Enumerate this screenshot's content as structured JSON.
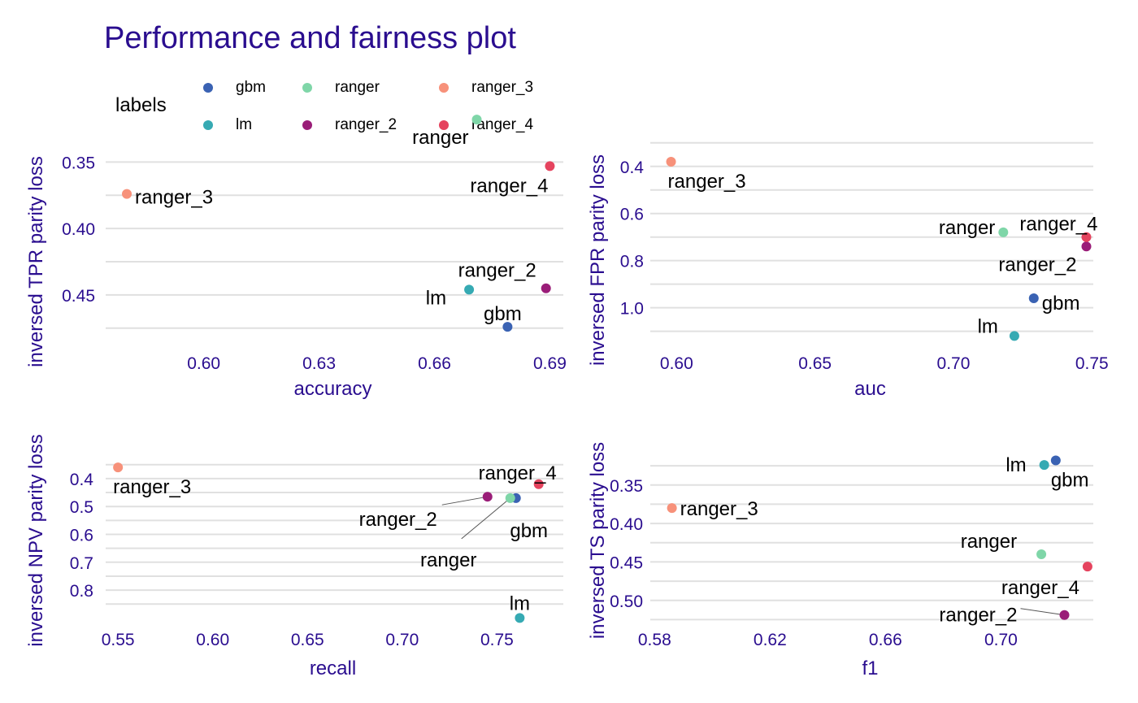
{
  "title": "Performance and fairness plot",
  "legend": {
    "title": "labels",
    "items": [
      {
        "label": "gbm",
        "color": "#3a62b3"
      },
      {
        "label": "lm",
        "color": "#36aab3"
      },
      {
        "label": "ranger",
        "color": "#7fd6a8"
      },
      {
        "label": "ranger_2",
        "color": "#9a1d78"
      },
      {
        "label": "ranger_3",
        "color": "#f7917a"
      },
      {
        "label": "ranger_4",
        "color": "#e5435e"
      }
    ]
  },
  "colors": {
    "title": "#2a0d8f",
    "axis_text": "#2a0d8f",
    "grid": "#e0e0e0"
  },
  "chart_data": [
    {
      "type": "scatter",
      "xlabel": "accuracy",
      "ylabel": "inversed TPR parity loss",
      "xlim": [
        0.5745,
        0.6935
      ],
      "ylim": [
        0.332,
        0.488
      ],
      "y_reversed": true,
      "xticks": [
        0.6,
        0.63,
        0.66,
        0.69
      ],
      "xtick_labels": [
        "0.60",
        "0.63",
        "0.66",
        "0.69"
      ],
      "yticks": [
        0.35,
        0.4,
        0.45
      ],
      "ytick_labels": [
        "0.35",
        "0.40",
        "0.45"
      ],
      "grid": true,
      "points": [
        {
          "label": "gbm",
          "x": 0.679,
          "y": 0.474
        },
        {
          "label": "lm",
          "x": 0.669,
          "y": 0.446
        },
        {
          "label": "ranger",
          "x": 0.671,
          "y": 0.318
        },
        {
          "label": "ranger_2",
          "x": 0.689,
          "y": 0.445
        },
        {
          "label": "ranger_3",
          "x": 0.58,
          "y": 0.374
        },
        {
          "label": "ranger_4",
          "x": 0.69,
          "y": 0.353
        }
      ]
    },
    {
      "type": "scatter",
      "xlabel": "auc",
      "ylabel": "inversed FPR parity loss",
      "xlim": [
        0.5905,
        0.7505
      ],
      "ylim": [
        0.28,
        1.16
      ],
      "y_reversed": true,
      "xticks": [
        0.6,
        0.65,
        0.7,
        0.75
      ],
      "xtick_labels": [
        "0.60",
        "0.65",
        "0.70",
        "0.75"
      ],
      "yticks": [
        0.4,
        0.6,
        0.8,
        1.0
      ],
      "ytick_labels": [
        "0.4",
        "0.6",
        "0.8",
        "1.0"
      ],
      "grid": true,
      "points": [
        {
          "label": "gbm",
          "x": 0.729,
          "y": 0.96
        },
        {
          "label": "lm",
          "x": 0.722,
          "y": 1.12
        },
        {
          "label": "ranger",
          "x": 0.718,
          "y": 0.68
        },
        {
          "label": "ranger_2",
          "x": 0.748,
          "y": 0.74
        },
        {
          "label": "ranger_3",
          "x": 0.598,
          "y": 0.38
        },
        {
          "label": "ranger_4",
          "x": 0.748,
          "y": 0.7
        }
      ]
    },
    {
      "type": "scatter",
      "xlabel": "recall",
      "ylabel": "inversed NPV parity loss",
      "xlim": [
        0.5435,
        0.785
      ],
      "ylim": [
        0.307,
        0.928
      ],
      "y_reversed": true,
      "xticks": [
        0.55,
        0.6,
        0.65,
        0.7,
        0.75
      ],
      "xtick_labels": [
        "0.55",
        "0.60",
        "0.65",
        "0.70",
        "0.75"
      ],
      "yticks": [
        0.4,
        0.5,
        0.6,
        0.7,
        0.8
      ],
      "ytick_labels": [
        "0.4",
        "0.5",
        "0.6",
        "0.7",
        "0.8"
      ],
      "grid": true,
      "points": [
        {
          "label": "gbm",
          "x": 0.76,
          "y": 0.47
        },
        {
          "label": "lm",
          "x": 0.762,
          "y": 0.9
        },
        {
          "label": "ranger",
          "x": 0.757,
          "y": 0.47
        },
        {
          "label": "ranger_2",
          "x": 0.745,
          "y": 0.465
        },
        {
          "label": "ranger_3",
          "x": 0.55,
          "y": 0.36
        },
        {
          "label": "ranger_4",
          "x": 0.772,
          "y": 0.42
        }
      ]
    },
    {
      "type": "scatter",
      "xlabel": "f1",
      "ylabel": "inversed TS parity loss",
      "xlim": [
        0.5785,
        0.732
      ],
      "ylim": [
        0.308,
        0.533
      ],
      "y_reversed": true,
      "xticks": [
        0.58,
        0.62,
        0.66,
        0.7
      ],
      "xtick_labels": [
        "0.58",
        "0.62",
        "0.66",
        "0.70"
      ],
      "yticks": [
        0.35,
        0.4,
        0.45,
        0.5
      ],
      "ytick_labels": [
        "0.35",
        "0.40",
        "0.45",
        "0.50"
      ],
      "grid": true,
      "points": [
        {
          "label": "gbm",
          "x": 0.719,
          "y": 0.318
        },
        {
          "label": "lm",
          "x": 0.715,
          "y": 0.324
        },
        {
          "label": "ranger",
          "x": 0.714,
          "y": 0.44
        },
        {
          "label": "ranger_2",
          "x": 0.722,
          "y": 0.519
        },
        {
          "label": "ranger_3",
          "x": 0.586,
          "y": 0.38
        },
        {
          "label": "ranger_4",
          "x": 0.73,
          "y": 0.456
        }
      ]
    }
  ]
}
